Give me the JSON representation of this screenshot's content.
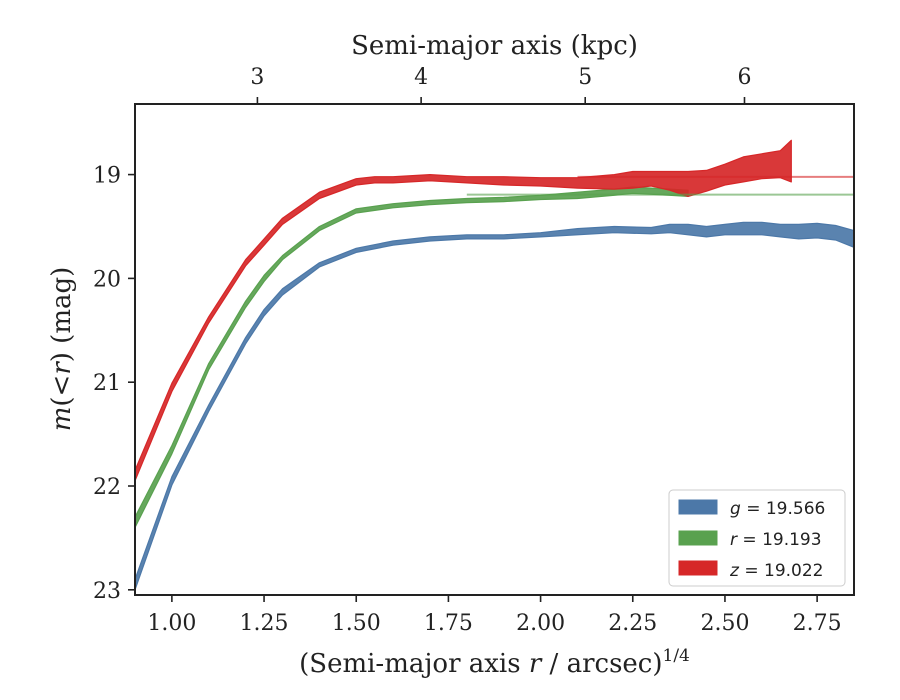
{
  "chart_data": {
    "type": "area",
    "title": "",
    "xlabel_top": "Semi-major axis (kpc)",
    "xlabel_bottom_main": "(Semi-major axis r / arcsec)",
    "xlabel_bottom_var": "r",
    "xlabel_bottom_pre": "(Semi-major axis ",
    "xlabel_bottom_post": " / arcsec)",
    "xlabel_bottom_exp": "1/4",
    "ylabel_pre": "m(",
    "ylabel_var": "<r",
    "ylabel_post": ") (mag)",
    "xlim": [
      0.9,
      2.85
    ],
    "ylim": [
      23.05,
      18.32
    ],
    "y_inverted": true,
    "xticks": [
      1.0,
      1.25,
      1.5,
      1.75,
      2.0,
      2.25,
      2.5,
      2.75
    ],
    "xtick_labels": [
      "1.00",
      "1.25",
      "1.50",
      "1.75",
      "2.00",
      "2.25",
      "2.50",
      "2.75"
    ],
    "yticks": [
      19,
      20,
      21,
      22,
      23
    ],
    "ytick_labels": [
      "19",
      "20",
      "21",
      "22",
      "23"
    ],
    "top_ticks_kpc": [
      3,
      4,
      5,
      6
    ],
    "top_ticks_x": [
      1.232,
      1.676,
      2.121,
      2.553
    ],
    "top_tick_labels": [
      "3",
      "4",
      "5",
      "6"
    ],
    "grid": false,
    "legend_position": "lower-right",
    "series": [
      {
        "name": "g = 19.566",
        "band": "g",
        "total": 19.566,
        "color": "#4c78a8",
        "x": [
          0.9,
          1.0,
          1.1,
          1.2,
          1.25,
          1.3,
          1.4,
          1.5,
          1.6,
          1.7,
          1.8,
          1.9,
          2.0,
          2.1,
          2.2,
          2.3,
          2.35,
          2.4,
          2.45,
          2.5,
          2.55,
          2.6,
          2.65,
          2.7,
          2.75,
          2.8,
          2.85
        ],
        "y_mid": [
          22.95,
          21.95,
          21.25,
          20.6,
          20.33,
          20.13,
          19.87,
          19.73,
          19.66,
          19.62,
          19.6,
          19.6,
          19.58,
          19.55,
          19.53,
          19.54,
          19.52,
          19.53,
          19.55,
          19.53,
          19.52,
          19.52,
          19.54,
          19.55,
          19.54,
          19.56,
          19.62
        ],
        "half_width": [
          0.05,
          0.04,
          0.03,
          0.03,
          0.03,
          0.03,
          0.02,
          0.02,
          0.02,
          0.02,
          0.02,
          0.02,
          0.02,
          0.03,
          0.03,
          0.03,
          0.04,
          0.05,
          0.05,
          0.05,
          0.06,
          0.06,
          0.06,
          0.07,
          0.07,
          0.07,
          0.08
        ],
        "asymptote": null
      },
      {
        "name": "r = 19.193",
        "band": "r",
        "total": 19.193,
        "color": "#59a14f",
        "x": [
          0.9,
          1.0,
          1.1,
          1.2,
          1.25,
          1.3,
          1.4,
          1.5,
          1.6,
          1.7,
          1.8,
          1.9,
          2.0,
          2.1,
          2.2,
          2.25,
          2.3,
          2.35,
          2.4
        ],
        "y_mid": [
          22.35,
          21.65,
          20.85,
          20.25,
          20.0,
          19.8,
          19.52,
          19.35,
          19.3,
          19.27,
          19.25,
          19.24,
          19.22,
          19.2,
          19.17,
          19.15,
          19.16,
          19.17,
          19.18
        ],
        "half_width": [
          0.05,
          0.04,
          0.03,
          0.03,
          0.03,
          0.02,
          0.02,
          0.02,
          0.02,
          0.02,
          0.02,
          0.02,
          0.02,
          0.03,
          0.03,
          0.03,
          0.03,
          0.03,
          0.03
        ],
        "asymptote": 19.193
      },
      {
        "name": "z = 19.022",
        "band": "z",
        "total": 19.022,
        "color": "#d62728",
        "x": [
          0.9,
          1.0,
          1.1,
          1.2,
          1.25,
          1.3,
          1.4,
          1.5,
          1.55,
          1.6,
          1.7,
          1.8,
          1.9,
          2.0,
          2.1,
          2.2,
          2.25,
          2.3,
          2.35,
          2.4,
          2.45,
          2.5,
          2.55,
          2.6,
          2.65,
          2.68
        ],
        "y_mid": [
          21.9,
          21.05,
          20.4,
          19.85,
          19.65,
          19.45,
          19.2,
          19.07,
          19.05,
          19.05,
          19.03,
          19.05,
          19.06,
          19.07,
          19.08,
          19.07,
          19.05,
          19.04,
          19.06,
          19.09,
          19.06,
          19.0,
          18.95,
          18.92,
          18.9,
          18.87
        ],
        "half_width": [
          0.05,
          0.04,
          0.03,
          0.03,
          0.03,
          0.03,
          0.03,
          0.03,
          0.03,
          0.03,
          0.03,
          0.03,
          0.04,
          0.04,
          0.05,
          0.07,
          0.08,
          0.07,
          0.09,
          0.12,
          0.1,
          0.1,
          0.12,
          0.12,
          0.13,
          0.2
        ],
        "asymptote": 19.022
      }
    ]
  }
}
